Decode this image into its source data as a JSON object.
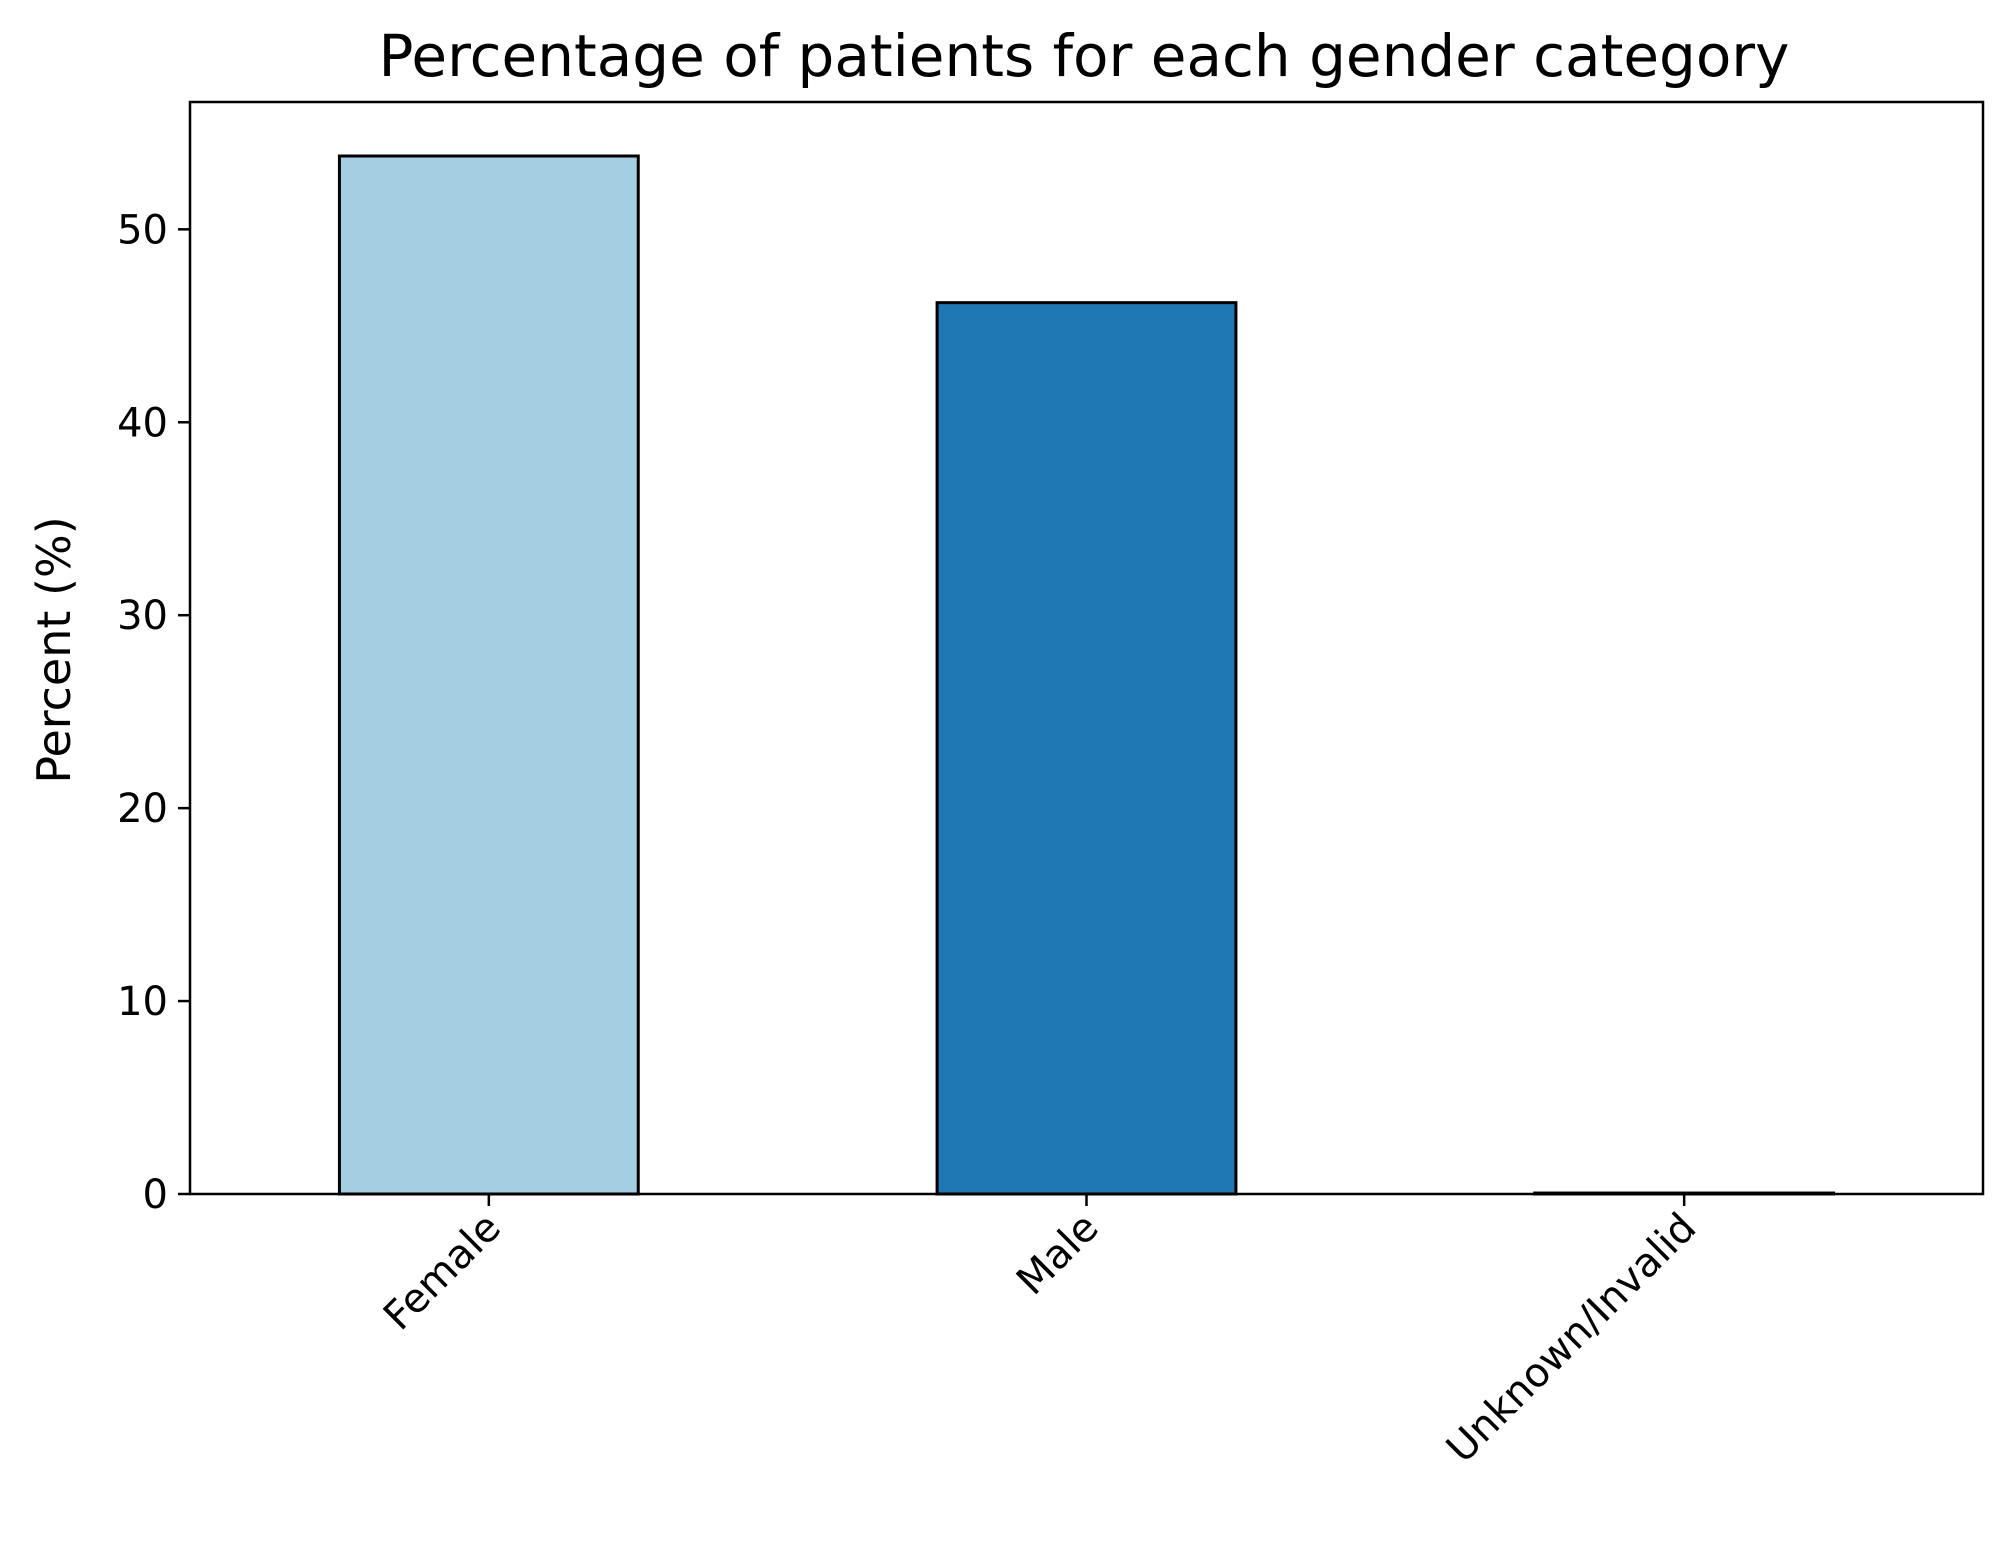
{
  "chart_data": {
    "type": "bar",
    "title": "Percentage of patients for each gender category",
    "xlabel": "",
    "ylabel": "Percent (%)",
    "categories": [
      "Female",
      "Male",
      "Unknown/Invalid"
    ],
    "values": [
      53.8,
      46.2,
      0.05
    ],
    "colors": [
      "#a6cee3",
      "#1f78b4",
      "#b2df8a"
    ],
    "edge_color": "#000000",
    "ylim": [
      0,
      56.6
    ],
    "yticks": [
      0,
      10,
      20,
      30,
      40,
      50
    ],
    "grid": false,
    "legend": "none"
  }
}
